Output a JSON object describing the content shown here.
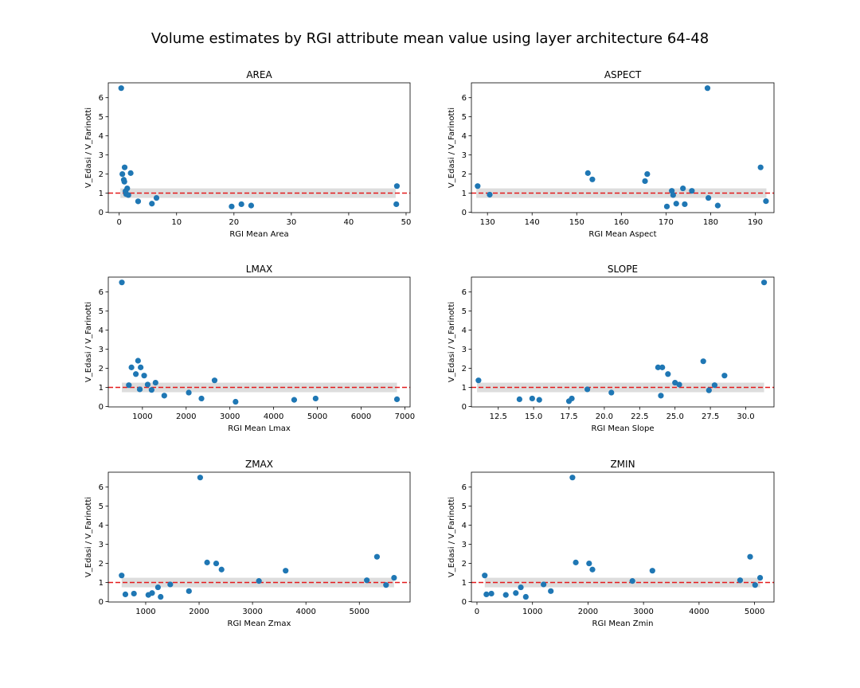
{
  "figure": {
    "title": "Volume estimates by RGI attribute mean value using layer architecture 64-48"
  },
  "chart_data": [
    {
      "type": "scatter",
      "title": "AREA",
      "xlabel": "RGI Mean Area",
      "ylabel": "V_Edasi / V_Farinotti",
      "xlim": [
        -1.9,
        50.7
      ],
      "ylim": [
        -0.02,
        6.78
      ],
      "xticks": [
        0,
        10,
        20,
        30,
        40,
        50
      ],
      "xtick_labels": [
        "0",
        "10",
        "20",
        "30",
        "40",
        "50"
      ],
      "yticks": [
        0,
        1,
        2,
        3,
        4,
        5,
        6
      ],
      "ytick_labels": [
        "0",
        "1",
        "2",
        "3",
        "4",
        "5",
        "6"
      ],
      "reference_line": 1.0,
      "band": [
        0.75,
        1.25
      ],
      "band_x": [
        0.2,
        48.2
      ],
      "x": [
        0.35,
        0.55,
        0.8,
        0.9,
        0.95,
        1.1,
        1.2,
        1.4,
        1.6,
        2.0,
        3.3,
        5.7,
        6.5,
        19.6,
        21.3,
        23.0,
        48.3,
        48.4
      ],
      "y": [
        6.5,
        2.0,
        1.7,
        1.6,
        2.35,
        1.1,
        0.95,
        1.25,
        0.9,
        2.05,
        0.57,
        0.45,
        0.75,
        0.3,
        0.42,
        0.35,
        0.42,
        1.37
      ]
    },
    {
      "type": "scatter",
      "title": "ASPECT",
      "xlabel": "RGI Mean Aspect",
      "ylabel": "V_Edasi / V_Farinotti",
      "xlim": [
        126.4,
        194.2
      ],
      "ylim": [
        -0.02,
        6.78
      ],
      "xticks": [
        130,
        140,
        150,
        160,
        170,
        180,
        190
      ],
      "xtick_labels": [
        "130",
        "140",
        "150",
        "160",
        "170",
        "180",
        "190"
      ],
      "yticks": [
        0,
        1,
        2,
        3,
        4,
        5,
        6
      ],
      "ytick_labels": [
        "0",
        "1",
        "2",
        "3",
        "4",
        "5",
        "6"
      ],
      "reference_line": 1.0,
      "band": [
        0.75,
        1.25
      ],
      "band_x": [
        127.5,
        192.5
      ],
      "x": [
        127.8,
        130.5,
        152.5,
        153.5,
        165.3,
        165.8,
        170.2,
        171.3,
        171.6,
        172.3,
        173.8,
        174.2,
        175.8,
        179.3,
        179.5,
        181.6,
        191.2,
        192.4
      ],
      "y": [
        1.37,
        0.92,
        2.05,
        1.72,
        1.63,
        2.0,
        0.3,
        1.12,
        0.9,
        0.45,
        1.25,
        0.42,
        1.12,
        6.5,
        0.75,
        0.35,
        2.35,
        0.58
      ]
    },
    {
      "type": "scatter",
      "title": "LMAX",
      "xlabel": "RGI Mean Lmax",
      "ylabel": "V_Edasi / V_Farinotti",
      "xlim": [
        220,
        7120
      ],
      "ylim": [
        -0.02,
        6.78
      ],
      "xticks": [
        1000,
        2000,
        3000,
        4000,
        5000,
        6000,
        7000
      ],
      "xtick_labels": [
        "1000",
        "2000",
        "3000",
        "4000",
        "5000",
        "6000",
        "7000"
      ],
      "yticks": [
        0,
        1,
        2,
        3,
        4,
        5,
        6
      ],
      "ytick_labels": [
        "0",
        "1",
        "2",
        "3",
        "4",
        "5",
        "6"
      ],
      "reference_line": 1.0,
      "band": [
        0.75,
        1.25
      ],
      "band_x": [
        530,
        6820
      ],
      "x": [
        530,
        690,
        750,
        850,
        900,
        940,
        960,
        1040,
        1120,
        1210,
        1300,
        1500,
        2060,
        2350,
        2650,
        3130,
        4470,
        4960,
        6820
      ],
      "y": [
        6.5,
        1.12,
        2.05,
        1.7,
        2.4,
        0.9,
        2.05,
        1.62,
        1.15,
        0.87,
        1.25,
        0.57,
        0.73,
        0.42,
        1.37,
        0.25,
        0.35,
        0.42,
        0.38
      ]
    },
    {
      "type": "scatter",
      "title": "SLOPE",
      "xlabel": "RGI Mean Slope",
      "ylabel": "V_Edasi / V_Farinotti",
      "xlim": [
        10.6,
        32.0
      ],
      "ylim": [
        -0.02,
        6.78
      ],
      "xticks": [
        12.5,
        15.0,
        17.5,
        20.0,
        22.5,
        25.0,
        27.5,
        30.0
      ],
      "xtick_labels": [
        "12.5",
        "15.0",
        "17.5",
        "20.0",
        "22.5",
        "25.0",
        "27.5",
        "30.0"
      ],
      "yticks": [
        0,
        1,
        2,
        3,
        4,
        5,
        6
      ],
      "ytick_labels": [
        "0",
        "1",
        "2",
        "3",
        "4",
        "5",
        "6"
      ],
      "reference_line": 1.0,
      "band": [
        0.75,
        1.25
      ],
      "band_x": [
        11.0,
        31.3
      ],
      "x": [
        11.1,
        14.0,
        14.9,
        15.4,
        17.5,
        17.7,
        18.8,
        20.5,
        23.8,
        24.0,
        24.1,
        24.5,
        25.0,
        25.3,
        27.0,
        27.4,
        27.8,
        28.5,
        31.3
      ],
      "y": [
        1.37,
        0.38,
        0.42,
        0.35,
        0.28,
        0.42,
        0.9,
        0.73,
        2.05,
        0.57,
        2.05,
        1.7,
        1.25,
        1.15,
        2.37,
        0.85,
        1.12,
        1.62,
        6.5
      ]
    },
    {
      "type": "scatter",
      "title": "ZMAX",
      "xlabel": "RGI Mean Zmax",
      "ylabel": "V_Edasi / V_Farinotti",
      "xlim": [
        300,
        5950
      ],
      "ylim": [
        -0.02,
        6.78
      ],
      "xticks": [
        1000,
        2000,
        3000,
        4000,
        5000
      ],
      "xtick_labels": [
        "1000",
        "2000",
        "3000",
        "4000",
        "5000"
      ],
      "yticks": [
        0,
        1,
        2,
        3,
        4,
        5,
        6
      ],
      "ytick_labels": [
        "0",
        "1",
        "2",
        "3",
        "4",
        "5",
        "6"
      ],
      "reference_line": 1.0,
      "band": [
        0.75,
        1.25
      ],
      "band_x": [
        550,
        5650
      ],
      "x": [
        550,
        620,
        780,
        1050,
        1120,
        1230,
        1280,
        1460,
        1810,
        2020,
        2150,
        2320,
        2420,
        3120,
        3620,
        5140,
        5330,
        5500,
        5650
      ],
      "y": [
        1.37,
        0.38,
        0.42,
        0.35,
        0.45,
        0.75,
        0.25,
        0.9,
        0.55,
        6.5,
        2.05,
        2.0,
        1.68,
        1.08,
        1.62,
        1.12,
        2.35,
        0.87,
        1.25
      ]
    },
    {
      "type": "scatter",
      "title": "ZMIN",
      "xlabel": "RGI Mean Zmin",
      "ylabel": "V_Edasi / V_Farinotti",
      "xlim": [
        -100,
        5350
      ],
      "ylim": [
        -0.02,
        6.78
      ],
      "xticks": [
        0,
        1000,
        2000,
        3000,
        4000,
        5000
      ],
      "xtick_labels": [
        "0",
        "1000",
        "2000",
        "3000",
        "4000",
        "5000"
      ],
      "yticks": [
        0,
        1,
        2,
        3,
        4,
        5,
        6
      ],
      "ytick_labels": [
        "0",
        "1",
        "2",
        "3",
        "4",
        "5",
        "6"
      ],
      "reference_line": 1.0,
      "band": [
        0.75,
        1.25
      ],
      "band_x": [
        140,
        5100
      ],
      "x": [
        140,
        170,
        260,
        520,
        700,
        790,
        880,
        1200,
        1330,
        1720,
        1780,
        2020,
        2080,
        2800,
        3160,
        4740,
        4920,
        5010,
        5100
      ],
      "y": [
        1.37,
        0.38,
        0.42,
        0.35,
        0.45,
        0.75,
        0.25,
        0.9,
        0.55,
        6.5,
        2.05,
        2.0,
        1.68,
        1.08,
        1.62,
        1.12,
        2.35,
        0.87,
        1.25
      ]
    }
  ],
  "style": {
    "point_color": "#1f77b4",
    "reference_line_color": "#e41a1c",
    "band_color": "#d9d9d9",
    "axis_color": "#000000"
  }
}
